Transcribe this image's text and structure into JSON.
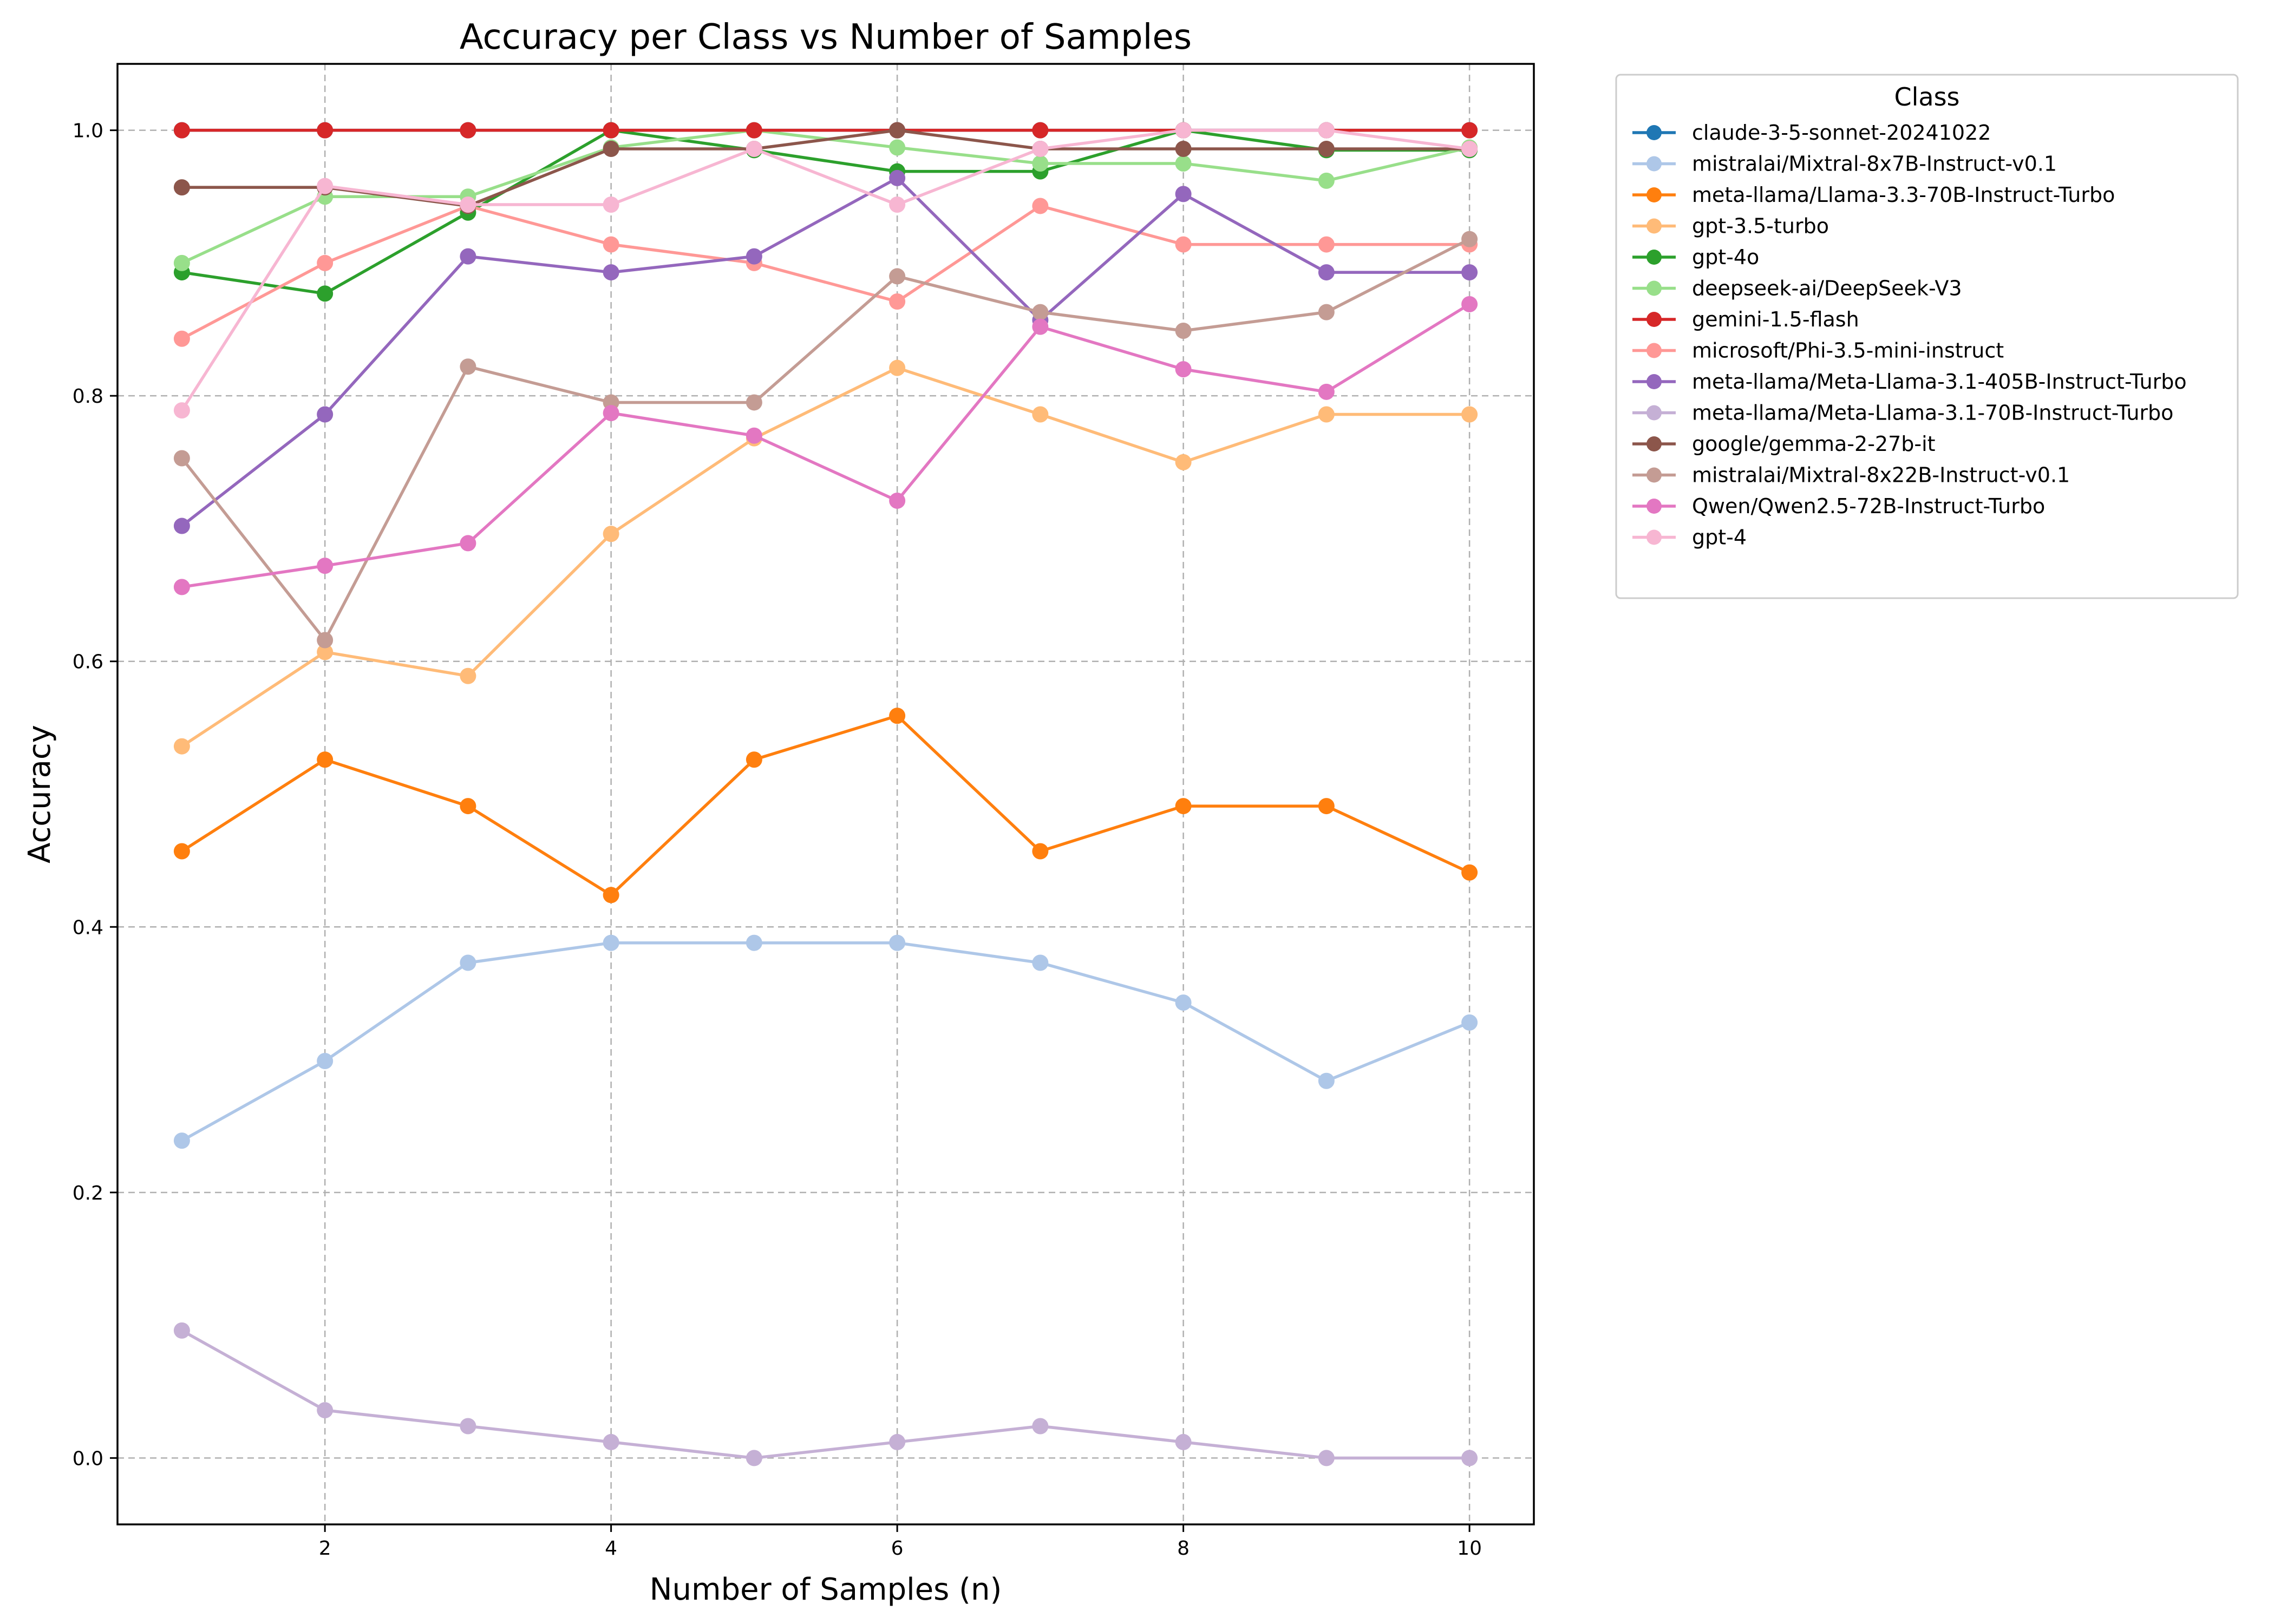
{
  "chart_data": {
    "type": "line",
    "title": "Accuracy per Class vs Number of Samples",
    "xlabel": "Number of Samples (n)",
    "ylabel": "Accuracy",
    "x": [
      1,
      2,
      3,
      4,
      5,
      6,
      7,
      8,
      9,
      10
    ],
    "xlim": [
      0.55,
      10.45
    ],
    "ylim": [
      -0.05,
      1.05
    ],
    "xticks": [
      2,
      4,
      6,
      8,
      10
    ],
    "yticks": [
      0.0,
      0.2,
      0.4,
      0.6,
      0.8,
      1.0
    ],
    "xtick_labels": [
      "2",
      "4",
      "6",
      "8",
      "10"
    ],
    "ytick_labels": [
      "0.0",
      "0.2",
      "0.4",
      "0.6",
      "0.8",
      "1.0"
    ],
    "grid": true,
    "legend_title": "Class",
    "legend_position": "outside-right-top",
    "series": [
      {
        "name": "claude-3-5-sonnet-20241022",
        "color": "#1f77b4",
        "values": [
          1.0,
          1.0,
          1.0,
          1.0,
          1.0,
          1.0,
          1.0,
          1.0,
          1.0,
          1.0
        ]
      },
      {
        "name": "mistralai/Mixtral-8x7B-Instruct-v0.1",
        "color": "#aec7e8",
        "values": [
          0.239,
          0.299,
          0.373,
          0.388,
          0.388,
          0.388,
          0.373,
          0.343,
          0.284,
          0.328
        ]
      },
      {
        "name": "meta-llama/Llama-3.3-70B-Instruct-Turbo",
        "color": "#ff7f0e",
        "values": [
          0.457,
          0.526,
          0.491,
          0.424,
          0.526,
          0.559,
          0.457,
          0.491,
          0.491,
          0.441
        ]
      },
      {
        "name": "gpt-3.5-turbo",
        "color": "#ffbb78",
        "values": [
          0.536,
          0.607,
          0.589,
          0.696,
          0.768,
          0.821,
          0.786,
          0.75,
          0.786,
          0.786
        ]
      },
      {
        "name": "gpt-4o",
        "color": "#2ca02c",
        "values": [
          0.893,
          0.877,
          0.938,
          1.0,
          0.985,
          0.969,
          0.969,
          1.0,
          0.985,
          0.985
        ]
      },
      {
        "name": "deepseek-ai/DeepSeek-V3",
        "color": "#98df8a",
        "values": [
          0.9,
          0.95,
          0.95,
          0.987,
          1.0,
          0.987,
          0.975,
          0.975,
          0.962,
          0.987
        ]
      },
      {
        "name": "gemini-1.5-flash",
        "color": "#d62728",
        "values": [
          1.0,
          1.0,
          1.0,
          1.0,
          1.0,
          1.0,
          1.0,
          1.0,
          1.0,
          1.0
        ]
      },
      {
        "name": "microsoft/Phi-3.5-mini-instruct",
        "color": "#ff9896",
        "values": [
          0.843,
          0.9,
          0.943,
          0.914,
          0.9,
          0.871,
          0.943,
          0.914,
          0.914,
          0.914
        ]
      },
      {
        "name": "meta-llama/Meta-Llama-3.1-405B-Instruct-Turbo",
        "color": "#9467bd",
        "values": [
          0.702,
          0.786,
          0.905,
          0.893,
          0.905,
          0.964,
          0.857,
          0.952,
          0.893,
          0.893
        ]
      },
      {
        "name": "meta-llama/Meta-Llama-3.1-70B-Instruct-Turbo",
        "color": "#c5b0d5",
        "values": [
          0.096,
          0.036,
          0.024,
          0.012,
          0.0,
          0.012,
          0.024,
          0.012,
          0.0,
          0.0
        ]
      },
      {
        "name": "google/gemma-2-27b-it",
        "color": "#8c564b",
        "values": [
          0.957,
          0.957,
          0.943,
          0.986,
          0.986,
          1.0,
          0.986,
          0.986,
          0.986,
          0.986
        ]
      },
      {
        "name": "mistralai/Mixtral-8x22B-Instruct-v0.1",
        "color": "#c49c94",
        "values": [
          0.753,
          0.616,
          0.822,
          0.795,
          0.795,
          0.89,
          0.863,
          0.849,
          0.863,
          0.918
        ]
      },
      {
        "name": "Qwen/Qwen2.5-72B-Instruct-Turbo",
        "color": "#e377c2",
        "values": [
          0.656,
          0.672,
          0.689,
          0.787,
          0.77,
          0.721,
          0.852,
          0.82,
          0.803,
          0.869
        ]
      },
      {
        "name": "gpt-4",
        "color": "#f7b6d2",
        "values": [
          0.789,
          0.958,
          0.944,
          0.944,
          0.986,
          0.944,
          0.986,
          1.0,
          1.0,
          0.986
        ]
      }
    ]
  }
}
